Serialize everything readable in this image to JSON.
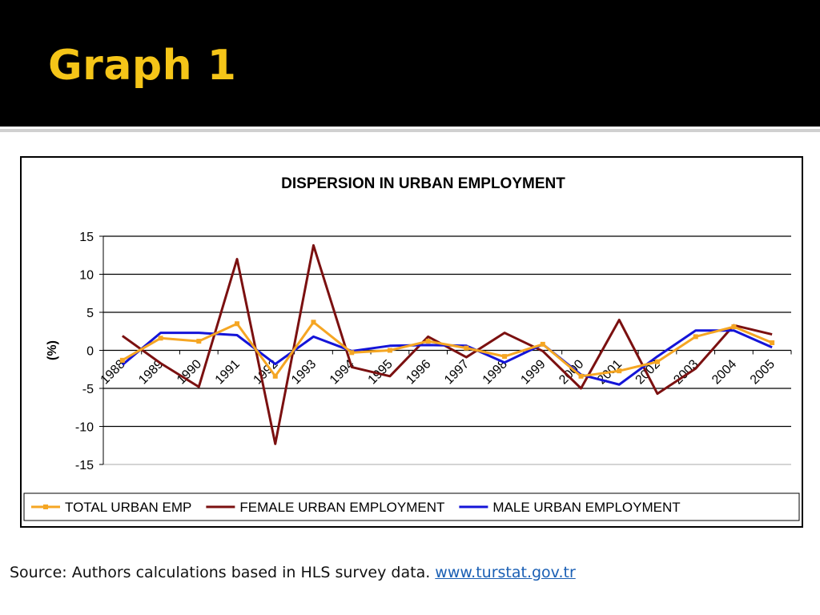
{
  "slide": {
    "title": "Graph 1",
    "source_text": "Source: Authors calculations based in HLS survey data.",
    "source_link": "www.turstat.gov.tr"
  },
  "colors": {
    "header_bg": "#000000",
    "title": "#f5c518",
    "total": "#f5a623",
    "female": "#7b1010",
    "male": "#1414d8",
    "link": "#1a5fb4"
  },
  "chart_data": {
    "type": "line",
    "title": "DISPERSION IN URBAN EMPLOYMENT",
    "ylabel": "(%)",
    "xlabel": "",
    "ylim": [
      -15,
      15
    ],
    "yticks": [
      15,
      10,
      5,
      0,
      -5,
      -10,
      -15
    ],
    "grid": "horizontal",
    "legend_position": "bottom",
    "categories": [
      "1988",
      "1989",
      "1990",
      "1991",
      "1992",
      "1993",
      "1994",
      "1995",
      "1996",
      "1997",
      "1998",
      "1999",
      "2000",
      "2001",
      "2002",
      "2003",
      "2004",
      "2005"
    ],
    "series": [
      {
        "name": "TOTAL URBAN EMP",
        "color": "#f5a623",
        "marker": "square",
        "values": [
          -1.3,
          1.6,
          1.2,
          3.5,
          -3.4,
          3.7,
          -0.3,
          0.0,
          1.2,
          0.3,
          -0.8,
          0.8,
          -3.4,
          -2.7,
          -1.5,
          1.8,
          3.1,
          1.0
        ]
      },
      {
        "name": "FEMALE URBAN EMPLOYMENT",
        "color": "#7b1010",
        "marker": "none",
        "values": [
          1.9,
          -1.7,
          -4.8,
          12.0,
          -12.3,
          13.8,
          -2.2,
          -3.4,
          1.8,
          -0.9,
          2.3,
          -0.1,
          -5.0,
          4.0,
          -5.7,
          -2.4,
          3.3,
          2.1
        ]
      },
      {
        "name": "MALE URBAN EMPLOYMENT",
        "color": "#1414d8",
        "marker": "none",
        "values": [
          -1.9,
          2.3,
          2.3,
          2.0,
          -1.8,
          1.8,
          -0.1,
          0.6,
          0.7,
          0.6,
          -1.6,
          0.8,
          -3.2,
          -4.5,
          -0.8,
          2.6,
          2.6,
          0.4
        ]
      }
    ]
  }
}
